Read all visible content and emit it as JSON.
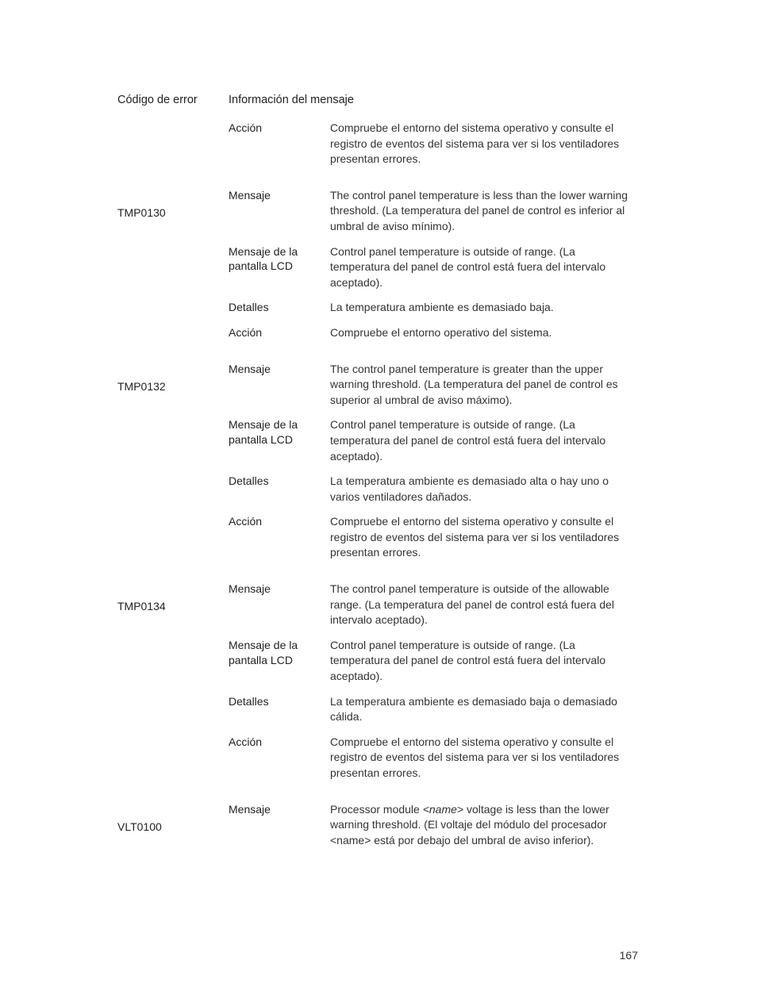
{
  "headers": {
    "code": "Código de error",
    "info": "Información del mensaje"
  },
  "labels": {
    "mensaje": "Mensaje",
    "lcd": "Mensaje de la pantalla LCD",
    "detalles": "Detalles",
    "accion": "Acción"
  },
  "orphan": {
    "accion": "Compruebe el entorno del sistema operativo y consulte el registro de eventos del sistema para ver si los ventiladores presentan errores."
  },
  "errors": [
    {
      "code": "TMP0130",
      "mensaje": "The control panel temperature is less than the lower warning threshold. (La temperatura del panel de control es inferior al umbral de aviso mínimo).",
      "lcd": "Control panel temperature is outside of range. (La temperatura del panel de control está fuera del intervalo aceptado).",
      "detalles": "La temperatura ambiente es demasiado baja.",
      "accion": "Compruebe el entorno operativo del sistema."
    },
    {
      "code": "TMP0132",
      "mensaje": "The control panel temperature is greater than the upper warning threshold. (La temperatura del panel de control es superior al umbral de aviso máximo).",
      "lcd": "Control panel temperature is outside of range. (La temperatura del panel de control está fuera del intervalo aceptado).",
      "detalles": "La temperatura ambiente es demasiado alta o hay uno o varios ventiladores dañados.",
      "accion": "Compruebe el entorno del sistema operativo y consulte el registro de eventos del sistema para ver si los ventiladores presentan errores."
    },
    {
      "code": "TMP0134",
      "mensaje": "The control panel temperature is outside of the allowable range. (La temperatura del panel de control está fuera del intervalo aceptado).",
      "lcd": "Control panel temperature is outside of range. (La temperatura del panel de control está fuera del intervalo aceptado).",
      "detalles": "La temperatura ambiente es demasiado baja o demasiado cálida.",
      "accion": "Compruebe el entorno del sistema operativo y consulte el registro de eventos del sistema para ver si los ventiladores presentan errores."
    }
  ],
  "vlt": {
    "code": "VLT0100",
    "mensaje_pre": "Processor module ",
    "mensaje_name1": "<name>",
    "mensaje_mid": " voltage is less than the lower warning threshold. (El voltaje del módulo del procesador ",
    "mensaje_name2": "<name>",
    "mensaje_post": " está por debajo del umbral de aviso inferior)."
  },
  "page_number": "167"
}
